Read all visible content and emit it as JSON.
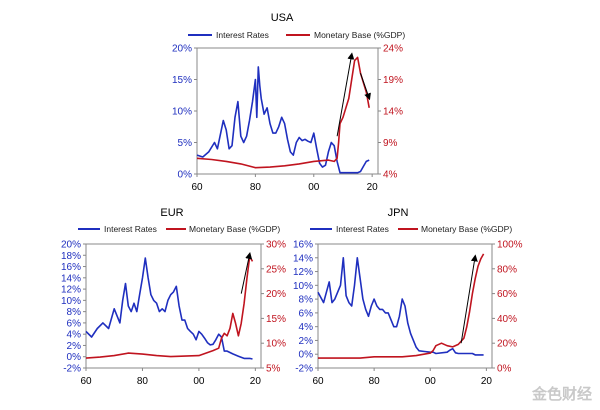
{
  "watermark": "金色财经",
  "colors": {
    "rates": "#1f2fbf",
    "base": "#c0141f",
    "arrow": "#000000"
  },
  "chart_data": [
    {
      "type": "line",
      "title": "USA",
      "series": [
        {
          "name": "Interest Rates",
          "axis": "left",
          "x": [
            1960,
            1962,
            1964,
            1966,
            1967,
            1969,
            1970,
            1971,
            1972,
            1973,
            1974,
            1975,
            1976,
            1977,
            1978,
            1979,
            1980,
            1980.5,
            1981,
            1981.5,
            1982,
            1983,
            1984,
            1985,
            1986,
            1987,
            1988,
            1989,
            1990,
            1991,
            1992,
            1993,
            1994,
            1995,
            1996,
            1997,
            1998,
            1999,
            2000,
            2001,
            2002,
            2003,
            2004,
            2005,
            2006,
            2007,
            2008,
            2009,
            2015,
            2016,
            2017,
            2018,
            2019
          ],
          "y": [
            3.0,
            2.7,
            3.5,
            5.0,
            4.0,
            8.5,
            7.0,
            4.0,
            4.5,
            9.0,
            11.5,
            6.0,
            5.0,
            6.0,
            8.5,
            11.5,
            15.0,
            9.0,
            17.0,
            14.0,
            12.0,
            9.5,
            10.5,
            8.0,
            6.5,
            6.5,
            7.5,
            9.0,
            8.0,
            5.5,
            3.5,
            3.0,
            5.0,
            5.8,
            5.3,
            5.5,
            5.2,
            5.0,
            6.5,
            4.0,
            1.7,
            1.1,
            1.4,
            3.5,
            5.0,
            4.5,
            2.0,
            0.2,
            0.2,
            0.4,
            1.2,
            2.0,
            2.2
          ]
        },
        {
          "name": "Monetary Base (%GDP)",
          "axis": "right",
          "x": [
            1960,
            1965,
            1970,
            1975,
            1980,
            1985,
            1990,
            1995,
            2000,
            2005,
            2007,
            2008,
            2008.5,
            2009,
            2010,
            2011,
            2012,
            2013,
            2014,
            2015,
            2016,
            2017,
            2018,
            2019
          ],
          "y": [
            6.5,
            6.3,
            6.0,
            5.6,
            5.0,
            5.1,
            5.3,
            5.6,
            6.0,
            6.2,
            6.0,
            6.5,
            9.0,
            12.0,
            13.0,
            14.5,
            16.0,
            19.0,
            22.0,
            22.5,
            20.0,
            18.5,
            17.0,
            14.5
          ]
        }
      ],
      "arrows": [
        {
          "x1": 2008,
          "y1": 10,
          "x2": 2013,
          "y2": 23
        },
        {
          "x1": 2016,
          "y1": 20,
          "x2": 2019,
          "y2": 16
        }
      ],
      "xlim": [
        1960,
        2022
      ],
      "xticks": [
        "60",
        "80",
        "00",
        "20"
      ],
      "ylim_left": [
        0,
        20
      ],
      "yticks_left": [
        "0%",
        "5%",
        "10%",
        "15%",
        "20%"
      ],
      "ylim_right": [
        4,
        24
      ],
      "yticks_right": [
        "4%",
        "9%",
        "14%",
        "19%",
        "24%"
      ],
      "legend": "top"
    },
    {
      "type": "line",
      "title": "EUR",
      "series": [
        {
          "name": "Interest Rates",
          "axis": "left",
          "x": [
            1960,
            1962,
            1964,
            1966,
            1968,
            1970,
            1972,
            1973,
            1974,
            1975,
            1976,
            1977,
            1978,
            1979,
            1980,
            1981,
            1982,
            1983,
            1984,
            1985,
            1986,
            1987,
            1988,
            1989,
            1990,
            1991,
            1992,
            1993,
            1994,
            1995,
            1996,
            1997,
            1998,
            1999,
            2000,
            2001,
            2002,
            2003,
            2004,
            2005,
            2006,
            2007,
            2008,
            2009,
            2010,
            2012,
            2014,
            2016,
            2018,
            2019
          ],
          "y": [
            4.5,
            3.5,
            5.0,
            6.0,
            5.0,
            8.5,
            6.0,
            10.0,
            13.0,
            9.0,
            8.0,
            9.5,
            8.0,
            11.0,
            14.0,
            17.5,
            14.0,
            11.0,
            10.0,
            9.5,
            8.0,
            8.5,
            8.0,
            10.0,
            11.0,
            11.5,
            12.5,
            9.0,
            6.5,
            6.5,
            5.0,
            4.5,
            4.0,
            3.0,
            4.5,
            4.0,
            3.3,
            2.5,
            2.1,
            2.2,
            3.0,
            4.0,
            3.5,
            1.0,
            1.0,
            0.5,
            0.1,
            -0.3,
            -0.3,
            -0.4
          ]
        },
        {
          "name": "Monetary Base (%GDP)",
          "axis": "right",
          "x": [
            1960,
            1965,
            1970,
            1975,
            1980,
            1985,
            1990,
            1995,
            2000,
            2005,
            2007,
            2008,
            2009,
            2010,
            2011,
            2012,
            2013,
            2014,
            2015,
            2016,
            2017,
            2018,
            2019
          ],
          "y": [
            7.0,
            7.2,
            7.5,
            8.0,
            7.8,
            7.5,
            7.3,
            7.4,
            7.5,
            8.5,
            9.0,
            11.0,
            12.0,
            11.5,
            13.0,
            16.0,
            14.0,
            11.5,
            14.0,
            18.0,
            23.0,
            27.5,
            26.5
          ]
        }
      ],
      "arrows": [
        {
          "x1": 2015,
          "y1": 20,
          "x2": 2018,
          "y2": 28
        }
      ],
      "xlim": [
        1960,
        2022
      ],
      "xticks": [
        "60",
        "80",
        "00",
        "20"
      ],
      "ylim_left": [
        -2,
        20
      ],
      "yticks_left": [
        "-2%",
        "0%",
        "2%",
        "4%",
        "6%",
        "8%",
        "10%",
        "12%",
        "14%",
        "16%",
        "18%",
        "20%"
      ],
      "ylim_right": [
        5,
        30
      ],
      "yticks_right": [
        "5%",
        "10%",
        "15%",
        "20%",
        "25%",
        "30%"
      ],
      "legend": "top"
    },
    {
      "type": "line",
      "title": "JPN",
      "series": [
        {
          "name": "Interest Rates",
          "axis": "left",
          "x": [
            1960,
            1962,
            1963,
            1964,
            1965,
            1966,
            1968,
            1969,
            1970,
            1971,
            1972,
            1973,
            1974,
            1975,
            1976,
            1977,
            1978,
            1979,
            1980,
            1981,
            1982,
            1983,
            1984,
            1985,
            1986,
            1987,
            1988,
            1989,
            1990,
            1991,
            1992,
            1993,
            1994,
            1995,
            1996,
            1998,
            2000,
            2001,
            2002,
            2006,
            2007,
            2008,
            2009,
            2010,
            2015,
            2016,
            2019
          ],
          "y": [
            9.0,
            7.5,
            9.0,
            10.5,
            7.5,
            8.0,
            10.0,
            14.0,
            8.5,
            7.5,
            7.0,
            10.0,
            14.0,
            11.0,
            8.0,
            6.5,
            5.5,
            7.0,
            8.0,
            7.0,
            6.5,
            6.5,
            6.0,
            6.0,
            5.0,
            4.0,
            4.0,
            5.5,
            8.0,
            7.0,
            4.5,
            3.0,
            2.0,
            1.0,
            0.5,
            0.4,
            0.3,
            0.3,
            0.1,
            0.3,
            0.6,
            0.8,
            0.2,
            0.1,
            0.1,
            -0.1,
            -0.1
          ]
        },
        {
          "name": "Monetary Base (%GDP)",
          "axis": "right",
          "x": [
            1960,
            1965,
            1970,
            1975,
            1980,
            1985,
            1990,
            1995,
            2000,
            2001,
            2002,
            2004,
            2006,
            2008,
            2010,
            2012,
            2013,
            2014,
            2015,
            2016,
            2017,
            2018,
            2019
          ],
          "y": [
            8,
            8,
            8,
            8,
            9,
            9,
            9,
            10,
            12,
            14,
            18,
            20,
            18,
            17,
            19,
            24,
            33,
            45,
            60,
            72,
            82,
            88,
            92
          ]
        }
      ],
      "arrows": [
        {
          "x1": 2011,
          "y1": 20,
          "x2": 2016,
          "y2": 90
        }
      ],
      "xlim": [
        1960,
        2022
      ],
      "xticks": [
        "60",
        "80",
        "00",
        "20"
      ],
      "ylim_left": [
        -2,
        16
      ],
      "yticks_left": [
        "-2%",
        "0%",
        "2%",
        "4%",
        "6%",
        "8%",
        "10%",
        "12%",
        "14%",
        "16%"
      ],
      "ylim_right": [
        0,
        100
      ],
      "yticks_right": [
        "0%",
        "20%",
        "40%",
        "60%",
        "80%",
        "100%"
      ],
      "legend": "top"
    }
  ]
}
